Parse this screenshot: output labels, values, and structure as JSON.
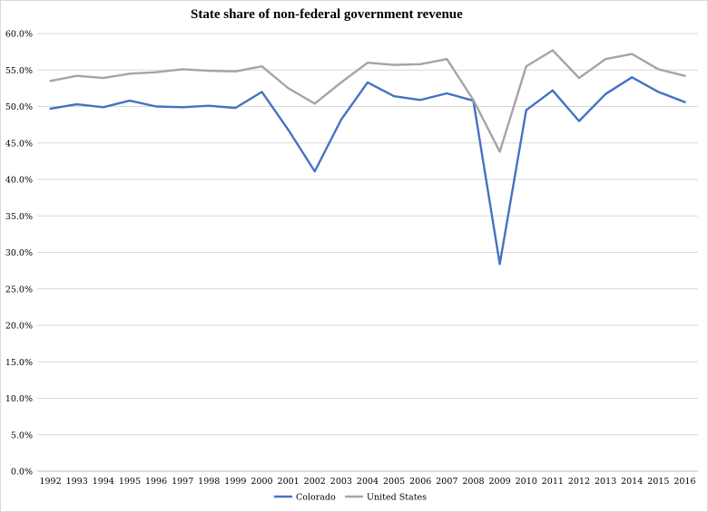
{
  "chart_data": {
    "type": "line",
    "title": "State share of non-federal government revenue",
    "xlabel": "",
    "ylabel": "",
    "categories": [
      "1992",
      "1993",
      "1994",
      "1995",
      "1996",
      "1997",
      "1998",
      "1999",
      "2000",
      "2001",
      "2002",
      "2003",
      "2004",
      "2005",
      "2006",
      "2007",
      "2008",
      "2009",
      "2010",
      "2011",
      "2012",
      "2013",
      "2014",
      "2015",
      "2016"
    ],
    "ylim": [
      0,
      60
    ],
    "ytick_labels": [
      "0.0%",
      "5.0%",
      "10.0%",
      "15.0%",
      "20.0%",
      "25.0%",
      "30.0%",
      "35.0%",
      "40.0%",
      "45.0%",
      "50.0%",
      "55.0%",
      "60.0%"
    ],
    "grid": "horizontal",
    "legend_position": "bottom",
    "series": [
      {
        "name": "Colorado",
        "color": "#4472c4",
        "values": [
          49.7,
          50.3,
          49.9,
          50.8,
          50.0,
          49.9,
          50.1,
          49.8,
          52.0,
          46.8,
          41.1,
          48.2,
          53.3,
          51.4,
          50.9,
          51.8,
          50.8,
          28.4,
          49.5,
          52.2,
          48.0,
          51.7,
          54.0,
          52.0,
          50.6
        ]
      },
      {
        "name": "United States",
        "color": "#a5a5a5",
        "values": [
          53.5,
          54.2,
          53.9,
          54.5,
          54.7,
          55.1,
          54.9,
          54.8,
          55.5,
          52.5,
          50.4,
          53.3,
          56.0,
          55.7,
          55.8,
          56.5,
          50.9,
          43.8,
          55.5,
          57.7,
          53.9,
          56.5,
          57.2,
          55.1,
          54.2
        ]
      }
    ]
  }
}
